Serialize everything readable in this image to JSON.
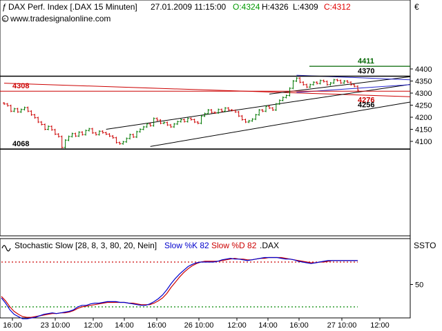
{
  "header": {
    "instrument": "DAX Perf. Index [.DAX  15 Minuten]",
    "datetime": "27.01.2009 11:15:00",
    "open": "O:4324",
    "high": "H:4326",
    "low": "L:4309",
    "close": "C:4312",
    "website": "www.tradesignalonline.com",
    "currency": "€"
  },
  "colors": {
    "open": "#009900",
    "close": "#e00000",
    "bull_bar": "#007700",
    "bear_bar": "#cc0000",
    "slow_k": "#0000cc",
    "slow_d": "#cc0000",
    "level_line_red": "#cc0000",
    "level_line_green": "#006600",
    "channel_line": "#000000",
    "triangle_line": "#2222cc",
    "dotted_line_red": "#cc0000",
    "dotted_line_green": "#008800"
  },
  "chart_data": [
    {
      "type": "line",
      "price_axis": {
        "ticks": [
          4100,
          4150,
          4200,
          4250,
          4300,
          4350,
          4400
        ],
        "ylim": [
          4060,
          4420
        ]
      },
      "time_axis": {
        "tick_labels": [
          "16:00",
          "23 10:00",
          "12:00",
          "14:00",
          "16:00",
          "26 10:00",
          "12:00",
          "14:00",
          "16:00",
          "27 10:00",
          "12:00"
        ]
      },
      "levels": [
        {
          "label": "4411",
          "value": 4411
        },
        {
          "label": "4370",
          "value": 4370
        },
        {
          "label": "4308",
          "value": 4308
        },
        {
          "label": "4276",
          "value": 4276
        },
        {
          "label": "4256",
          "value": 4256
        },
        {
          "label": "4068",
          "value": 4068
        }
      ],
      "close": [
        4255,
        4248,
        4225,
        4235,
        4222,
        4232,
        4240,
        4225,
        4210,
        4198,
        4180,
        4170,
        4150,
        4162,
        4148,
        4130,
        4120,
        4075,
        4105,
        4120,
        4132,
        4122,
        4138,
        4128,
        4145,
        4152,
        4135,
        4128,
        4142,
        4136,
        4130,
        4122,
        4115,
        4095,
        4090,
        4098,
        4112,
        4128,
        4118,
        4140,
        4150,
        4160,
        4172,
        4165,
        4195,
        4188,
        4175,
        4178,
        4168,
        4160,
        4172,
        4182,
        4190,
        4182,
        4195,
        4190,
        4180,
        4175,
        4205,
        4215,
        4230,
        4220,
        4218,
        4232,
        4225,
        4238,
        4230,
        4228,
        4222,
        4205,
        4190,
        4180,
        4185,
        4192,
        4210,
        4230,
        4225,
        4245,
        4238,
        4230,
        4255,
        4270,
        4282,
        4290,
        4320,
        4350,
        4362,
        4345,
        4335,
        4325,
        4335,
        4345,
        4340,
        4352,
        4348,
        4335,
        4342,
        4355,
        4352,
        4342,
        4350,
        4345,
        4335,
        4328,
        4312
      ],
      "stochastic": {
        "title": "Stochastic Slow [28, 8, 3, 80, 20, Nein]",
        "k_label": "Slow %K 82",
        "d_label": "Slow %D 82",
        "symbol": ".DAX",
        "axis_label": "SSTO",
        "ticks": [
          50
        ],
        "ylim": [
          0,
          100
        ],
        "upper_level": 80,
        "lower_level": 20,
        "slow_k": [
          32,
          25,
          16,
          10,
          7,
          4,
          4,
          5,
          6,
          8,
          10,
          11,
          12,
          11,
          12,
          13,
          14,
          16,
          20,
          22,
          22,
          24,
          25,
          25,
          26,
          27,
          27,
          27,
          26,
          26,
          25,
          24,
          23,
          22,
          22,
          24,
          27,
          31,
          36,
          43,
          51,
          58,
          64,
          69,
          74,
          77,
          79,
          80,
          80,
          80,
          80,
          81,
          83,
          84,
          85,
          84,
          84,
          83,
          82,
          83,
          84,
          85,
          86,
          86,
          86,
          86,
          85,
          84,
          84,
          83,
          81,
          80,
          79,
          78,
          79,
          80,
          81,
          82,
          82,
          82,
          82,
          82,
          82,
          82,
          82
        ],
        "slow_d": [
          34,
          28,
          20,
          14,
          10,
          7,
          6,
          6,
          7,
          8,
          9,
          10,
          11,
          11,
          12,
          12,
          13,
          15,
          18,
          20,
          21,
          22,
          23,
          24,
          25,
          26,
          26,
          26,
          26,
          26,
          25,
          25,
          24,
          23,
          23,
          23,
          25,
          28,
          32,
          38,
          46,
          53,
          60,
          66,
          71,
          75,
          78,
          80,
          81,
          81,
          81,
          81,
          82,
          83,
          84,
          85,
          84,
          84,
          83,
          83,
          84,
          85,
          85,
          86,
          86,
          86,
          86,
          85,
          84,
          83,
          82,
          81,
          80,
          79,
          79,
          80,
          80,
          81,
          82,
          82,
          82,
          82,
          82,
          82,
          82
        ]
      }
    }
  ]
}
